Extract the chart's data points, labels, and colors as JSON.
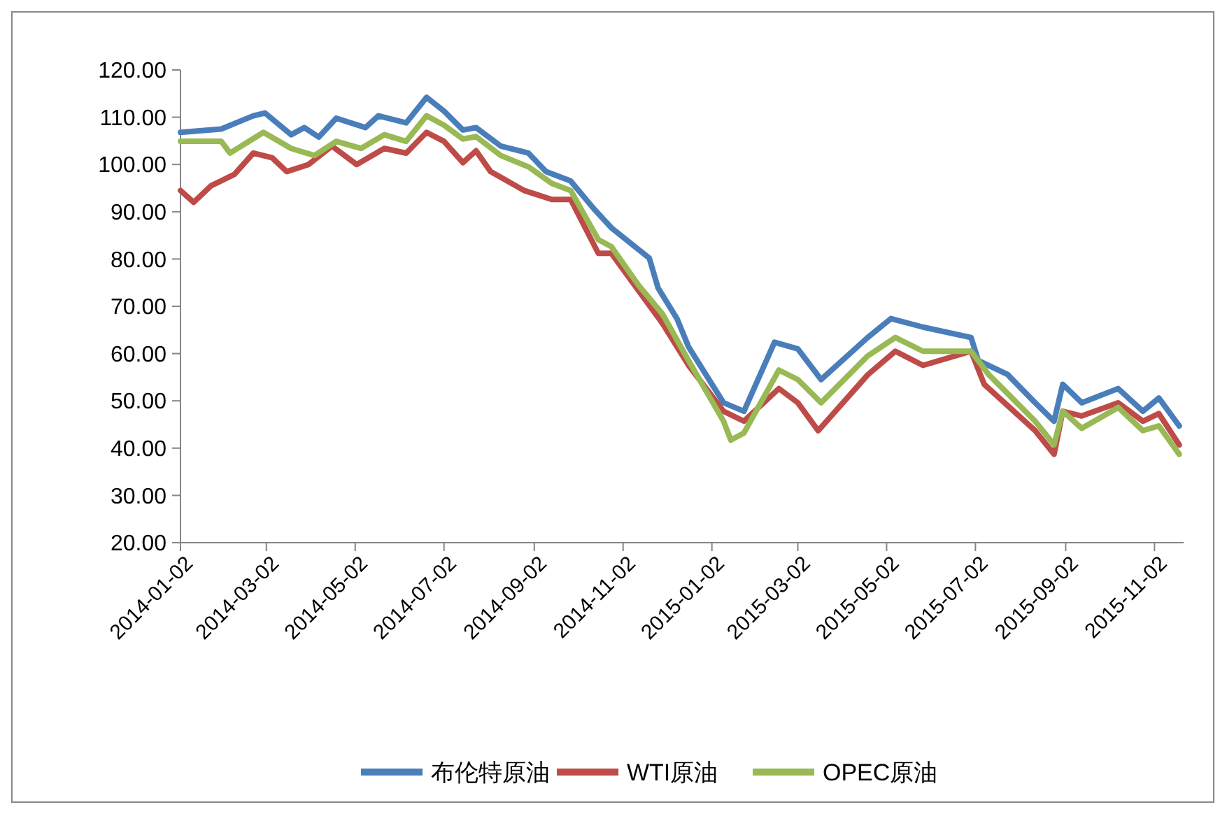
{
  "chart_data": {
    "type": "line",
    "legend": "bottom",
    "grid": false,
    "marker": "none",
    "line_style": "solid",
    "xlim": [
      "2014-01-02",
      "2015-11-22"
    ],
    "xticks": [
      "2014-01-02",
      "2014-03-02",
      "2014-05-02",
      "2014-07-02",
      "2014-09-02",
      "2014-11-02",
      "2015-01-02",
      "2015-03-02",
      "2015-05-02",
      "2015-07-02",
      "2015-09-02",
      "2015-11-02"
    ],
    "ylim": [
      20,
      120
    ],
    "yticks": [
      {
        "value": 20,
        "label": "20.00"
      },
      {
        "value": 30,
        "label": "30.00"
      },
      {
        "value": 40,
        "label": "40.00"
      },
      {
        "value": 50,
        "label": "50.00"
      },
      {
        "value": 60,
        "label": "60.00"
      },
      {
        "value": 70,
        "label": "70.00"
      },
      {
        "value": 80,
        "label": "80.00"
      },
      {
        "value": 90,
        "label": "90.00"
      },
      {
        "value": 100,
        "label": "100.00"
      },
      {
        "value": 110,
        "label": "110.00"
      },
      {
        "value": 120,
        "label": "120.00"
      }
    ],
    "series": [
      {
        "name": "布伦特原油",
        "color": "#4a7ebb",
        "x": [
          "2014-01-02",
          "2014-01-30",
          "2014-02-21",
          "2014-03-01",
          "2014-03-19",
          "2014-03-28",
          "2014-04-07",
          "2014-04-19",
          "2014-05-09",
          "2014-05-18",
          "2014-06-06",
          "2014-06-20",
          "2014-07-02",
          "2014-07-15",
          "2014-07-24",
          "2014-08-10",
          "2014-08-29",
          "2014-09-10",
          "2014-09-27",
          "2014-10-13",
          "2014-10-25",
          "2014-11-20",
          "2014-11-26",
          "2014-12-09",
          "2014-12-17",
          "2015-01-10",
          "2015-01-24",
          "2015-02-14",
          "2015-03-02",
          "2015-03-18",
          "2015-04-19",
          "2015-05-05",
          "2015-05-27",
          "2015-06-29",
          "2015-07-04",
          "2015-07-24",
          "2015-08-12",
          "2015-08-25",
          "2015-08-31",
          "2015-09-13",
          "2015-10-08",
          "2015-10-25",
          "2015-11-05",
          "2015-11-19"
        ],
        "values": [
          106.8,
          107.5,
          110.3,
          110.9,
          106.3,
          107.8,
          105.8,
          109.8,
          107.8,
          110.3,
          108.8,
          114.2,
          111.3,
          107.3,
          107.8,
          103.9,
          102.4,
          98.5,
          96.5,
          90.6,
          86.6,
          80.2,
          73.9,
          67.4,
          61.4,
          49.6,
          47.8,
          62.4,
          61.0,
          54.5,
          63.4,
          67.4,
          65.6,
          63.4,
          58.5,
          55.6,
          49.6,
          45.7,
          53.5,
          49.6,
          52.6,
          47.8,
          50.6,
          44.7
        ]
      },
      {
        "name": "WTI原油",
        "color": "#be4b48",
        "x": [
          "2014-01-02",
          "2014-01-11",
          "2014-01-23",
          "2014-02-08",
          "2014-02-21",
          "2014-03-06",
          "2014-03-16",
          "2014-03-31",
          "2014-04-16",
          "2014-05-03",
          "2014-05-22",
          "2014-06-06",
          "2014-06-20",
          "2014-07-02",
          "2014-07-15",
          "2014-07-24",
          "2014-08-03",
          "2014-08-26",
          "2014-09-14",
          "2014-09-27",
          "2014-10-16",
          "2014-10-25",
          "2014-11-29",
          "2014-12-17",
          "2015-01-10",
          "2015-01-24",
          "2015-02-17",
          "2015-03-02",
          "2015-03-16",
          "2015-04-19",
          "2015-05-08",
          "2015-05-27",
          "2015-06-29",
          "2015-07-08",
          "2015-08-12",
          "2015-08-25",
          "2015-08-31",
          "2015-09-13",
          "2015-10-08",
          "2015-10-25",
          "2015-11-05",
          "2015-11-19"
        ],
        "values": [
          94.5,
          92.0,
          95.5,
          97.9,
          102.4,
          101.4,
          98.5,
          100.0,
          103.9,
          100.0,
          103.4,
          102.4,
          106.8,
          104.9,
          100.4,
          102.9,
          98.5,
          94.5,
          92.6,
          92.6,
          81.2,
          81.2,
          66.4,
          57.5,
          47.8,
          45.7,
          52.6,
          49.6,
          43.7,
          55.5,
          60.5,
          57.5,
          60.5,
          53.5,
          43.7,
          38.7,
          47.8,
          46.8,
          49.6,
          45.7,
          47.3,
          40.7
        ]
      },
      {
        "name": "OPEC原油",
        "color": "#98b954",
        "x": [
          "2014-01-02",
          "2014-01-30",
          "2014-02-05",
          "2014-02-28",
          "2014-03-19",
          "2014-04-04",
          "2014-04-19",
          "2014-05-06",
          "2014-05-22",
          "2014-06-06",
          "2014-06-20",
          "2014-07-02",
          "2014-07-15",
          "2014-07-24",
          "2014-08-10",
          "2014-08-29",
          "2014-09-14",
          "2014-09-27",
          "2014-10-16",
          "2014-10-25",
          "2014-11-13",
          "2014-11-29",
          "2014-12-17",
          "2015-01-10",
          "2015-01-15",
          "2015-01-24",
          "2015-02-17",
          "2015-03-02",
          "2015-03-18",
          "2015-04-19",
          "2015-05-08",
          "2015-05-27",
          "2015-06-29",
          "2015-07-11",
          "2015-08-12",
          "2015-08-25",
          "2015-08-31",
          "2015-09-13",
          "2015-10-08",
          "2015-10-25",
          "2015-11-05",
          "2015-11-19"
        ],
        "values": [
          104.9,
          104.9,
          102.4,
          106.8,
          103.4,
          101.9,
          104.9,
          103.4,
          106.3,
          104.9,
          110.3,
          108.3,
          105.4,
          105.9,
          101.9,
          99.5,
          96.0,
          94.5,
          84.1,
          82.6,
          74.3,
          68.4,
          58.5,
          45.7,
          41.7,
          43.2,
          56.5,
          54.5,
          49.6,
          59.5,
          63.4,
          60.5,
          60.5,
          55.6,
          45.7,
          40.7,
          47.8,
          44.2,
          48.6,
          43.7,
          44.7,
          38.7
        ]
      }
    ]
  }
}
